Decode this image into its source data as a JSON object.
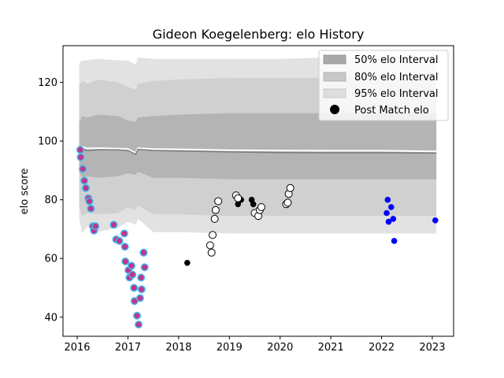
{
  "chart_data": {
    "type": "scatter",
    "title": "Gideon Koegelenberg: elo History",
    "xlabel": "",
    "ylabel": "elo score",
    "xlim": [
      2015.72,
      2023.42
    ],
    "ylim": [
      33.5,
      132.5
    ],
    "xticks": [
      2016,
      2017,
      2018,
      2019,
      2020,
      2021,
      2022,
      2023
    ],
    "yticks": [
      40,
      60,
      80,
      100,
      120
    ],
    "legend": {
      "position": "top-right",
      "entries": [
        "50% elo Interval",
        "80% elo Interval",
        "95% elo Interval",
        "Post Match elo"
      ]
    },
    "bands": {
      "x": [
        2016.04,
        2016.1,
        2016.2,
        2016.4,
        2016.8,
        2017.0,
        2017.15,
        2017.2,
        2017.5,
        2018.0,
        2019.0,
        2020.0,
        2021.0,
        2022.0,
        2023.08
      ],
      "b95": {
        "upper": [
          126.5,
          127.5,
          127.5,
          128.0,
          127.5,
          127.5,
          126.0,
          128.5,
          128.0,
          128.0,
          128.0,
          128.0,
          128.5,
          128.5,
          128.5
        ],
        "lower": [
          73.5,
          68.5,
          71.0,
          69.0,
          70.5,
          72.5,
          71.5,
          73.5,
          69.0,
          69.0,
          68.5,
          68.5,
          68.5,
          68.5,
          68.5
        ]
      },
      "b80": {
        "upper": [
          119.0,
          120.5,
          119.5,
          121.0,
          120.0,
          118.5,
          117.5,
          119.5,
          120.5,
          121.0,
          121.5,
          121.5,
          121.5,
          121.5,
          121.5
        ],
        "lower": [
          77.5,
          74.5,
          75.5,
          75.0,
          75.5,
          77.5,
          76.5,
          78.0,
          75.0,
          75.0,
          74.5,
          74.5,
          74.5,
          74.5,
          74.5
        ]
      },
      "b50": {
        "upper": [
          106.5,
          108.5,
          108.0,
          109.0,
          108.5,
          107.0,
          106.5,
          108.0,
          108.5,
          109.0,
          109.5,
          109.5,
          109.5,
          109.5,
          109.5
        ],
        "lower": [
          89.5,
          87.5,
          88.0,
          87.5,
          88.0,
          89.0,
          88.5,
          89.5,
          87.5,
          87.5,
          87.0,
          87.0,
          87.0,
          87.0,
          87.0
        ]
      },
      "median": [
        97.0,
        97.2,
        96.8,
        97.0,
        97.0,
        96.8,
        95.5,
        97.2,
        96.8,
        96.6,
        96.3,
        96.1,
        96.0,
        96.0,
        95.9
      ],
      "mean": [
        97.6,
        98.0,
        97.5,
        97.6,
        97.4,
        97.3,
        95.9,
        97.6,
        97.3,
        97.2,
        96.9,
        96.8,
        96.7,
        96.7,
        96.5
      ]
    },
    "series": [
      {
        "style": "magenta-fill-blue-edge",
        "fill": "#c2338d",
        "edge": "#41b8e8",
        "points": [
          [
            2016.06,
            97.0
          ],
          [
            2016.07,
            94.5
          ],
          [
            2016.11,
            90.5
          ],
          [
            2016.14,
            86.5
          ],
          [
            2016.17,
            84.0
          ],
          [
            2016.22,
            80.5
          ],
          [
            2016.24,
            79.5
          ],
          [
            2016.27,
            77.0
          ],
          [
            2016.31,
            71.0
          ],
          [
            2016.33,
            69.5
          ],
          [
            2016.36,
            71.0
          ],
          [
            2016.72,
            71.5
          ],
          [
            2016.77,
            66.5
          ],
          [
            2016.83,
            66.0
          ],
          [
            2016.93,
            68.5
          ],
          [
            2016.94,
            64.0
          ],
          [
            2016.95,
            59.0
          ],
          [
            2017.01,
            56.0
          ],
          [
            2017.03,
            53.5
          ],
          [
            2017.07,
            57.5
          ],
          [
            2017.09,
            54.5
          ],
          [
            2017.12,
            50.0
          ],
          [
            2017.13,
            45.5
          ],
          [
            2017.18,
            40.5
          ],
          [
            2017.21,
            37.5
          ],
          [
            2017.24,
            46.5
          ],
          [
            2017.26,
            53.5
          ],
          [
            2017.27,
            49.5
          ],
          [
            2017.31,
            62.0
          ],
          [
            2017.33,
            57.0
          ]
        ]
      },
      {
        "style": "black",
        "fill": "#000000",
        "edge": "#000000",
        "points": [
          [
            2018.17,
            58.5
          ],
          [
            2019.17,
            78.5
          ],
          [
            2019.23,
            80.0
          ],
          [
            2019.44,
            80.0
          ],
          [
            2019.47,
            78.5
          ]
        ]
      },
      {
        "style": "hollow",
        "fill": "#ffffff",
        "edge": "#000000",
        "points": [
          [
            2018.62,
            64.5
          ],
          [
            2018.65,
            62.0
          ],
          [
            2018.67,
            68.0
          ],
          [
            2018.71,
            73.5
          ],
          [
            2018.73,
            76.5
          ],
          [
            2018.78,
            79.5
          ],
          [
            2019.13,
            81.5
          ],
          [
            2019.17,
            80.5
          ],
          [
            2019.5,
            75.5
          ],
          [
            2019.57,
            74.5
          ],
          [
            2019.6,
            76.5
          ],
          [
            2019.63,
            77.5
          ],
          [
            2020.12,
            78.5
          ],
          [
            2020.15,
            79.0
          ],
          [
            2020.17,
            82.0
          ],
          [
            2020.2,
            84.0
          ]
        ]
      },
      {
        "style": "blue",
        "fill": "#0000ff",
        "edge": "#0000ff",
        "points": [
          [
            2022.1,
            75.5
          ],
          [
            2022.12,
            80.0
          ],
          [
            2022.14,
            72.5
          ],
          [
            2022.19,
            77.5
          ],
          [
            2022.23,
            73.5
          ],
          [
            2022.25,
            66.0
          ],
          [
            2023.06,
            73.0
          ]
        ]
      }
    ]
  }
}
